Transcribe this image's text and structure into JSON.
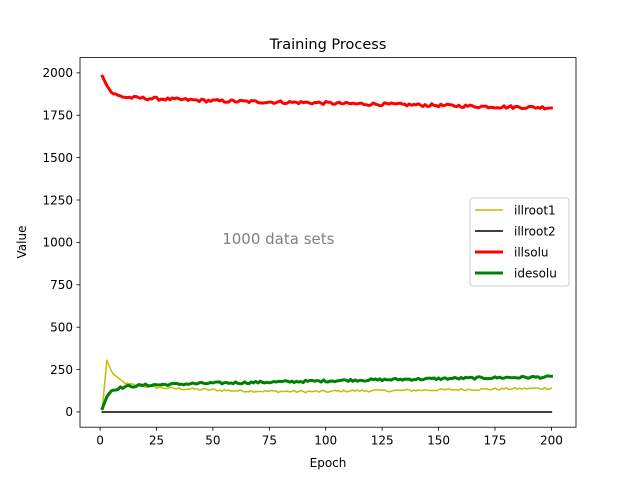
{
  "chart_data": {
    "type": "line",
    "title": "Training Process",
    "xlabel": "Epoch",
    "ylabel": "Value",
    "xlim": [
      -8.9,
      210.9
    ],
    "ylim": [
      -90,
      2090
    ],
    "xticks": [
      0,
      25,
      50,
      75,
      100,
      125,
      150,
      175,
      200
    ],
    "yticks": [
      0,
      250,
      500,
      750,
      1000,
      1250,
      1500,
      1750,
      2000
    ],
    "grid": false,
    "legend_position": "center-right",
    "annotation": {
      "text": "1000 data sets",
      "x": 79,
      "y": 990
    },
    "series": [
      {
        "name": "illroot1",
        "color": "#bfbf00",
        "line_width": 1.5,
        "points": [
          [
            1,
            20
          ],
          [
            3,
            305
          ],
          [
            5,
            240
          ],
          [
            8,
            195
          ],
          [
            12,
            165
          ],
          [
            20,
            150
          ],
          [
            30,
            140
          ],
          [
            40,
            135
          ],
          [
            50,
            130
          ],
          [
            60,
            125
          ],
          [
            75,
            122
          ],
          [
            90,
            120
          ],
          [
            100,
            120
          ],
          [
            110,
            125
          ],
          [
            125,
            125
          ],
          [
            150,
            130
          ],
          [
            175,
            135
          ],
          [
            200,
            140
          ]
        ]
      },
      {
        "name": "illroot2",
        "color": "#000000",
        "line_width": 1.5,
        "points": [
          [
            1,
            0
          ],
          [
            200,
            0
          ]
        ]
      },
      {
        "name": "illsolu",
        "color": "#ff0000",
        "line_width": 3,
        "points": [
          [
            1,
            1980
          ],
          [
            3,
            1925
          ],
          [
            5,
            1885
          ],
          [
            8,
            1865
          ],
          [
            12,
            1855
          ],
          [
            20,
            1850
          ],
          [
            30,
            1845
          ],
          [
            40,
            1840
          ],
          [
            50,
            1835
          ],
          [
            60,
            1832
          ],
          [
            75,
            1828
          ],
          [
            90,
            1825
          ],
          [
            100,
            1822
          ],
          [
            110,
            1818
          ],
          [
            125,
            1815
          ],
          [
            150,
            1808
          ],
          [
            175,
            1800
          ],
          [
            200,
            1795
          ]
        ]
      },
      {
        "name": "idesolu",
        "color": "#008000",
        "line_width": 3,
        "points": [
          [
            1,
            20
          ],
          [
            3,
            90
          ],
          [
            5,
            125
          ],
          [
            8,
            140
          ],
          [
            12,
            150
          ],
          [
            20,
            158
          ],
          [
            30,
            162
          ],
          [
            40,
            166
          ],
          [
            50,
            170
          ],
          [
            60,
            172
          ],
          [
            75,
            176
          ],
          [
            90,
            180
          ],
          [
            100,
            183
          ],
          [
            110,
            187
          ],
          [
            125,
            190
          ],
          [
            150,
            196
          ],
          [
            175,
            202
          ],
          [
            200,
            206
          ]
        ]
      }
    ]
  }
}
